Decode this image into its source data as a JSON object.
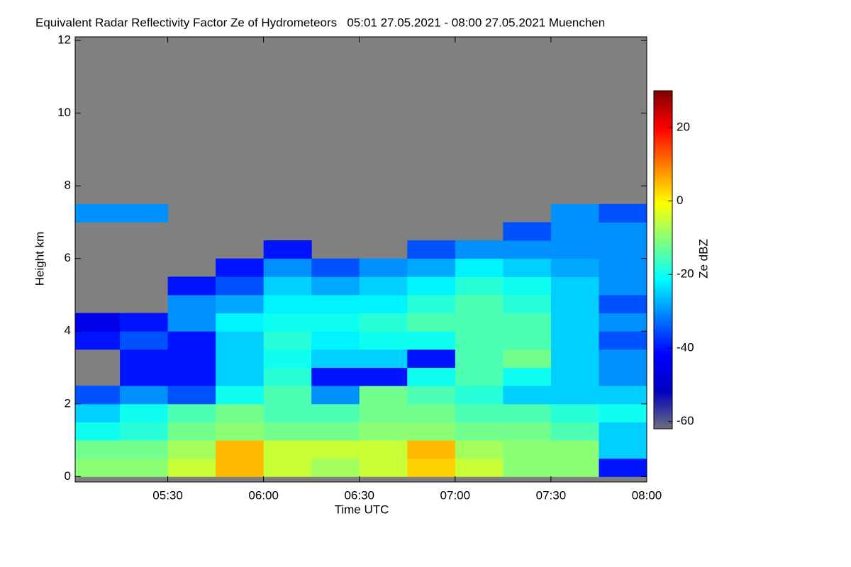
{
  "chart_data": {
    "type": "heatmap",
    "title": "Equivalent Radar Reflectivity Factor Ze of Hydrometeors   05:01 27.05.2021 - 08:00 27.05.2021 Muenchen",
    "xlabel": "Time UTC",
    "ylabel": "Height km",
    "colorbar_label": "Ze dBZ",
    "xlim": [
      5.0167,
      8.0
    ],
    "xticks": [
      {
        "value": 5.5,
        "label": "05:30"
      },
      {
        "value": 6.0,
        "label": "06:00"
      },
      {
        "value": 6.5,
        "label": "06:30"
      },
      {
        "value": 7.0,
        "label": "07:00"
      },
      {
        "value": 7.5,
        "label": "07:30"
      },
      {
        "value": 8.0,
        "label": "08:00"
      }
    ],
    "ylim": [
      -0.15,
      12.1
    ],
    "yticks": [
      0,
      2,
      4,
      6,
      8,
      10,
      12
    ],
    "clim": [
      -62,
      30
    ],
    "cticks": [
      -60,
      -40,
      -20,
      0,
      20
    ],
    "colormap": [
      "#6e6e80",
      "#0000c0",
      "#0000ff",
      "#0080ff",
      "#00ffff",
      "#80ff80",
      "#ffff00",
      "#ff8000",
      "#ff0000",
      "#800000"
    ],
    "background": "#808080",
    "x_edges": [
      5.0167,
      5.25,
      5.5,
      5.75,
      6.0,
      6.25,
      6.5,
      6.75,
      7.0,
      7.25,
      7.5,
      7.75,
      8.0
    ],
    "y_edges": [
      0,
      0.5,
      1,
      1.5,
      2,
      2.5,
      3,
      3.5,
      4,
      4.5,
      5,
      5.5,
      6,
      6.5,
      7,
      7.5
    ],
    "z": [
      [
        -10,
        -10,
        -5,
        5,
        -5,
        -8,
        -5,
        3,
        -5,
        -10,
        -10,
        -40
      ],
      [
        -12,
        -12,
        -8,
        5,
        -5,
        -5,
        -5,
        5,
        -8,
        -10,
        -10,
        -25
      ],
      [
        -20,
        -18,
        -12,
        -10,
        -12,
        -12,
        -10,
        -10,
        -12,
        -12,
        -15,
        -25
      ],
      [
        -25,
        -20,
        -15,
        -12,
        -15,
        -15,
        -12,
        -12,
        -15,
        -15,
        -18,
        -20
      ],
      [
        -35,
        -30,
        -35,
        -20,
        -15,
        -30,
        -12,
        -15,
        -18,
        -25,
        -25,
        -25
      ],
      [
        null,
        -40,
        -40,
        -25,
        -18,
        -40,
        -40,
        -20,
        -15,
        -20,
        -25,
        -30
      ],
      [
        null,
        -40,
        -40,
        -25,
        -20,
        -25,
        -25,
        -40,
        -15,
        -12,
        -25,
        -30
      ],
      [
        -40,
        -35,
        -40,
        -25,
        -18,
        -22,
        -20,
        -20,
        -15,
        -15,
        -25,
        -35
      ],
      [
        -45,
        -40,
        -30,
        -22,
        -20,
        -20,
        -18,
        -15,
        -15,
        -15,
        -25,
        -30
      ],
      [
        null,
        null,
        -30,
        -28,
        -22,
        -22,
        -22,
        -18,
        -15,
        -18,
        -25,
        -35
      ],
      [
        null,
        null,
        -40,
        -35,
        -25,
        -28,
        -25,
        -22,
        -18,
        -20,
        -25,
        -30
      ],
      [
        null,
        null,
        null,
        -40,
        -30,
        -35,
        -30,
        -28,
        -22,
        -25,
        -28,
        -30
      ],
      [
        null,
        null,
        null,
        null,
        -40,
        null,
        null,
        -35,
        -30,
        -30,
        -30,
        -30
      ],
      [
        null,
        null,
        null,
        null,
        null,
        null,
        null,
        null,
        null,
        -35,
        -30,
        -30
      ],
      [
        -30,
        -30,
        null,
        null,
        null,
        null,
        null,
        null,
        null,
        null,
        -30,
        -35
      ]
    ]
  }
}
